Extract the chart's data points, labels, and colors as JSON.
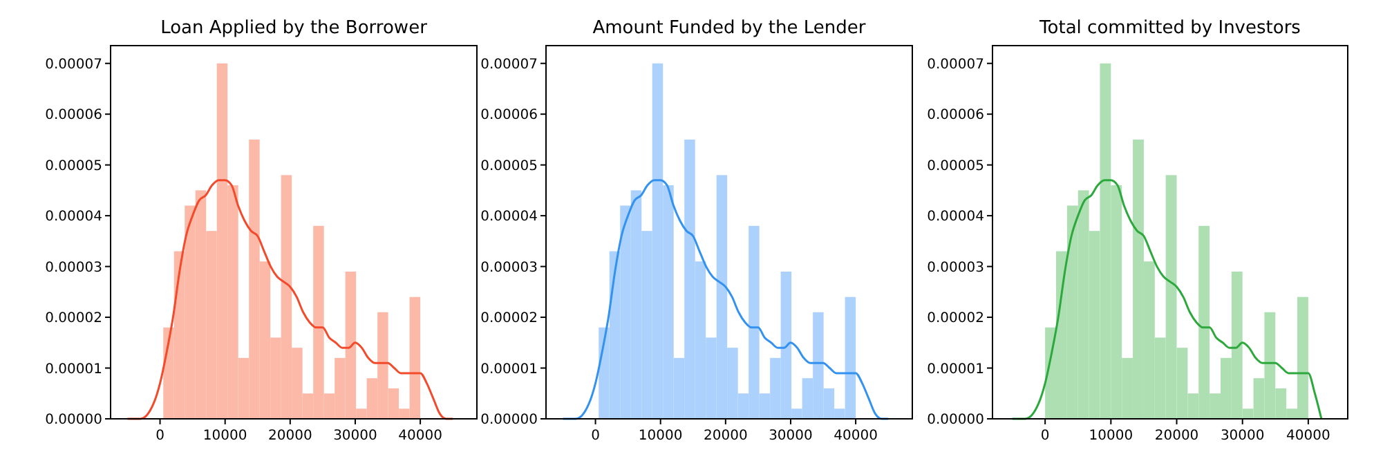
{
  "chart_data": [
    {
      "type": "histogram",
      "title": "Loan Applied by the Borrower",
      "color": "#fdb9a8",
      "bins": [
        500,
        2146,
        3792,
        5438,
        7083,
        8729,
        10375,
        12021,
        13667,
        15313,
        16958,
        18604,
        20250,
        21896,
        23542,
        25188,
        26833,
        28479,
        30125,
        31771,
        33417,
        35063,
        36708,
        38354,
        40000
      ],
      "values": [
        1.8e-05,
        3.3e-05,
        4.2e-05,
        4.5e-05,
        3.7e-05,
        7e-05,
        4.6e-05,
        1.2e-05,
        5.5e-05,
        3.1e-05,
        1.6e-05,
        4.8e-05,
        1.4e-05,
        5e-06,
        3.8e-05,
        5e-06,
        1.2e-05,
        2.9e-05,
        2e-06,
        8e-06,
        2.1e-05,
        6e-06,
        2e-06,
        2.4e-05
      ],
      "series": [
        {
          "type": "line",
          "color": "#f24a2b",
          "x": [
            -5000,
            -3000,
            -1000,
            0,
            1000,
            2000,
            3000,
            4000,
            5000,
            6000,
            7000,
            8000,
            9000,
            10000,
            11000,
            12000,
            13000,
            14000,
            15000,
            16000,
            17000,
            18000,
            19000,
            20000,
            21000,
            22000,
            23000,
            24000,
            25000,
            26000,
            27000,
            28000,
            29000,
            30000,
            31000,
            32000,
            33000,
            34000,
            35000,
            36000,
            37000,
            38000,
            39000,
            40000,
            41000,
            42000,
            43000,
            44000,
            45000
          ],
          "values": [
            0,
            0,
            3e-06,
            7e-06,
            1.3e-05,
            2e-05,
            2.9e-05,
            3.6e-05,
            4e-05,
            4.3e-05,
            4.4e-05,
            4.6e-05,
            4.7e-05,
            4.7e-05,
            4.6e-05,
            4.2e-05,
            3.9e-05,
            3.7e-05,
            3.6e-05,
            3.3e-05,
            3e-05,
            2.8e-05,
            2.7e-05,
            2.6e-05,
            2.4e-05,
            2.1e-05,
            1.9e-05,
            1.8e-05,
            1.8e-05,
            1.6e-05,
            1.5e-05,
            1.4e-05,
            1.4e-05,
            1.5e-05,
            1.4e-05,
            1.2e-05,
            1.1e-05,
            1.1e-05,
            1.1e-05,
            1e-05,
            9e-06,
            9e-06,
            9e-06,
            9e-06,
            7e-06,
            4e-06,
            1e-06,
            0,
            0
          ]
        }
      ],
      "xlim": [
        -7600,
        48700
      ],
      "ylim": [
        0,
        7.35e-05
      ],
      "xticks": [
        0,
        10000,
        20000,
        30000,
        40000
      ],
      "yticks": [
        {
          "value": 0,
          "label": "0.00000"
        },
        {
          "value": 1e-05,
          "label": "0.00001"
        },
        {
          "value": 2e-05,
          "label": "0.00002"
        },
        {
          "value": 3e-05,
          "label": "0.00003"
        },
        {
          "value": 4e-05,
          "label": "0.00004"
        },
        {
          "value": 5e-05,
          "label": "0.00005"
        },
        {
          "value": 6e-05,
          "label": "0.00006"
        },
        {
          "value": 7e-05,
          "label": "0.00007"
        }
      ],
      "grid": false
    },
    {
      "type": "histogram",
      "title": "Amount Funded by the Lender",
      "color": "#abd1fc",
      "bins": [
        500,
        2146,
        3792,
        5438,
        7083,
        8729,
        10375,
        12021,
        13667,
        15313,
        16958,
        18604,
        20250,
        21896,
        23542,
        25188,
        26833,
        28479,
        30125,
        31771,
        33417,
        35063,
        36708,
        38354,
        40000
      ],
      "values": [
        1.8e-05,
        3.3e-05,
        4.2e-05,
        4.5e-05,
        3.7e-05,
        7e-05,
        4.6e-05,
        1.2e-05,
        5.5e-05,
        3.1e-05,
        1.6e-05,
        4.8e-05,
        1.4e-05,
        5e-06,
        3.8e-05,
        5e-06,
        1.2e-05,
        2.9e-05,
        2e-06,
        8e-06,
        2.1e-05,
        6e-06,
        2e-06,
        2.4e-05
      ],
      "series": [
        {
          "type": "line",
          "color": "#3391f0",
          "x": [
            -5000,
            -3000,
            -1000,
            0,
            1000,
            2000,
            3000,
            4000,
            5000,
            6000,
            7000,
            8000,
            9000,
            10000,
            11000,
            12000,
            13000,
            14000,
            15000,
            16000,
            17000,
            18000,
            19000,
            20000,
            21000,
            22000,
            23000,
            24000,
            25000,
            26000,
            27000,
            28000,
            29000,
            30000,
            31000,
            32000,
            33000,
            34000,
            35000,
            36000,
            37000,
            38000,
            39000,
            40000,
            41000,
            42000,
            43000,
            44000,
            45000
          ],
          "values": [
            0,
            0,
            3e-06,
            7e-06,
            1.3e-05,
            2e-05,
            2.9e-05,
            3.6e-05,
            4e-05,
            4.3e-05,
            4.4e-05,
            4.6e-05,
            4.7e-05,
            4.7e-05,
            4.6e-05,
            4.2e-05,
            3.9e-05,
            3.7e-05,
            3.6e-05,
            3.3e-05,
            3e-05,
            2.8e-05,
            2.7e-05,
            2.6e-05,
            2.4e-05,
            2.1e-05,
            1.9e-05,
            1.8e-05,
            1.8e-05,
            1.6e-05,
            1.5e-05,
            1.4e-05,
            1.4e-05,
            1.5e-05,
            1.4e-05,
            1.2e-05,
            1.1e-05,
            1.1e-05,
            1.1e-05,
            1e-05,
            9e-06,
            9e-06,
            9e-06,
            9e-06,
            7e-06,
            4e-06,
            1e-06,
            0,
            0
          ]
        }
      ],
      "xlim": [
        -7600,
        48700
      ],
      "ylim": [
        0,
        7.35e-05
      ],
      "xticks": [
        0,
        10000,
        20000,
        30000,
        40000
      ],
      "yticks": [
        {
          "value": 0,
          "label": "0.00000"
        },
        {
          "value": 1e-05,
          "label": "0.00001"
        },
        {
          "value": 2e-05,
          "label": "0.00002"
        },
        {
          "value": 3e-05,
          "label": "0.00003"
        },
        {
          "value": 4e-05,
          "label": "0.00004"
        },
        {
          "value": 5e-05,
          "label": "0.00005"
        },
        {
          "value": 6e-05,
          "label": "0.00006"
        },
        {
          "value": 7e-05,
          "label": "0.00007"
        }
      ],
      "grid": false
    },
    {
      "type": "histogram",
      "title": "Total committed by Investors",
      "color": "#addfb3",
      "bins": [
        0,
        1667,
        3333,
        5000,
        6667,
        8333,
        10000,
        11667,
        13333,
        15000,
        16667,
        18333,
        20000,
        21667,
        23333,
        25000,
        26667,
        28333,
        30000,
        31667,
        33333,
        35000,
        36667,
        38333,
        40000
      ],
      "values": [
        1.8e-05,
        3.3e-05,
        4.2e-05,
        4.5e-05,
        3.7e-05,
        7e-05,
        4.6e-05,
        1.2e-05,
        5.5e-05,
        3.1e-05,
        1.6e-05,
        4.8e-05,
        1.4e-05,
        5e-06,
        3.8e-05,
        5e-06,
        1.2e-05,
        2.9e-05,
        2e-06,
        8e-06,
        2.1e-05,
        6e-06,
        2e-06,
        2.4e-05
      ],
      "series": [
        {
          "type": "line",
          "color": "#2ca83c",
          "x": [
            -5000,
            -3000,
            -1000,
            0,
            1000,
            2000,
            3000,
            4000,
            5000,
            6000,
            7000,
            8000,
            9000,
            10000,
            11000,
            12000,
            13000,
            14000,
            15000,
            16000,
            17000,
            18000,
            19000,
            20000,
            21000,
            22000,
            23000,
            24000,
            25000,
            26000,
            27000,
            28000,
            29000,
            30000,
            31000,
            32000,
            33000,
            34000,
            35000,
            36000,
            37000,
            38000,
            39000,
            40000,
            41000,
            42000
          ],
          "values": [
            0,
            0,
            3e-06,
            7e-06,
            1.3e-05,
            2e-05,
            2.9e-05,
            3.6e-05,
            4e-05,
            4.3e-05,
            4.4e-05,
            4.6e-05,
            4.7e-05,
            4.7e-05,
            4.6e-05,
            4.2e-05,
            3.9e-05,
            3.7e-05,
            3.6e-05,
            3.3e-05,
            3e-05,
            2.8e-05,
            2.7e-05,
            2.6e-05,
            2.4e-05,
            2.1e-05,
            1.9e-05,
            1.8e-05,
            1.8e-05,
            1.6e-05,
            1.5e-05,
            1.4e-05,
            1.4e-05,
            1.5e-05,
            1.4e-05,
            1.2e-05,
            1.1e-05,
            1.1e-05,
            1.1e-05,
            1e-05,
            9e-06,
            9e-06,
            9e-06,
            9e-06,
            5e-06,
            0
          ]
        }
      ],
      "xlim": [
        -8000,
        46000
      ],
      "ylim": [
        0,
        7.35e-05
      ],
      "xticks": [
        0,
        10000,
        20000,
        30000,
        40000
      ],
      "yticks": [
        {
          "value": 0,
          "label": "0.00000"
        },
        {
          "value": 1e-05,
          "label": "0.00001"
        },
        {
          "value": 2e-05,
          "label": "0.00002"
        },
        {
          "value": 3e-05,
          "label": "0.00003"
        },
        {
          "value": 4e-05,
          "label": "0.00004"
        },
        {
          "value": 5e-05,
          "label": "0.00005"
        },
        {
          "value": 6e-05,
          "label": "0.00006"
        },
        {
          "value": 7e-05,
          "label": "0.00007"
        }
      ],
      "grid": false
    }
  ]
}
